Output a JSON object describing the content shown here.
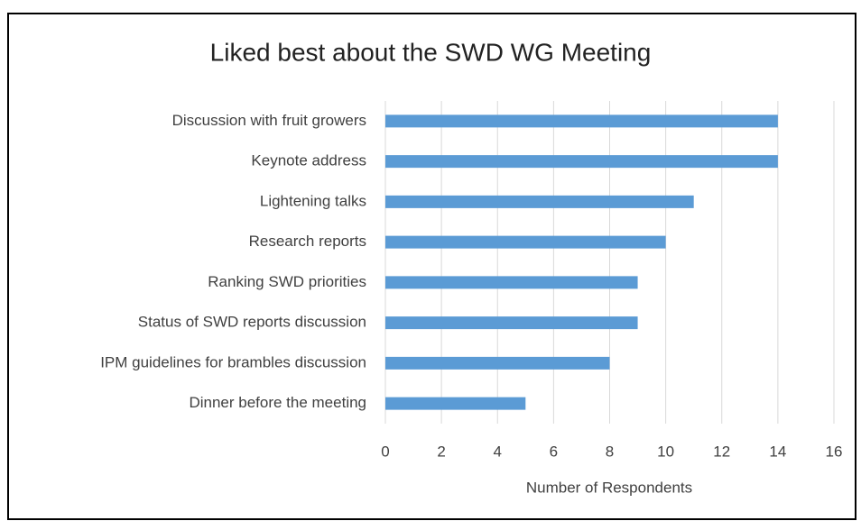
{
  "chart_data": {
    "type": "hbar",
    "title": "Liked best about the SWD WG Meeting",
    "categories": [
      "Discussion with fruit growers",
      "Keynote address",
      "Lightening talks",
      "Research reports",
      "Ranking SWD priorities",
      "Status of SWD reports discussion",
      "IPM guidelines for brambles discussion",
      "Dinner before the meeting"
    ],
    "values": [
      14,
      14,
      11,
      10,
      9,
      9,
      8,
      5
    ],
    "color": "#5b9bd5",
    "xlabel": "Number of Respondents",
    "xlim": [
      0,
      16
    ],
    "xticks": [
      0,
      2,
      4,
      6,
      8,
      10,
      12,
      14,
      16
    ],
    "grid": true
  }
}
